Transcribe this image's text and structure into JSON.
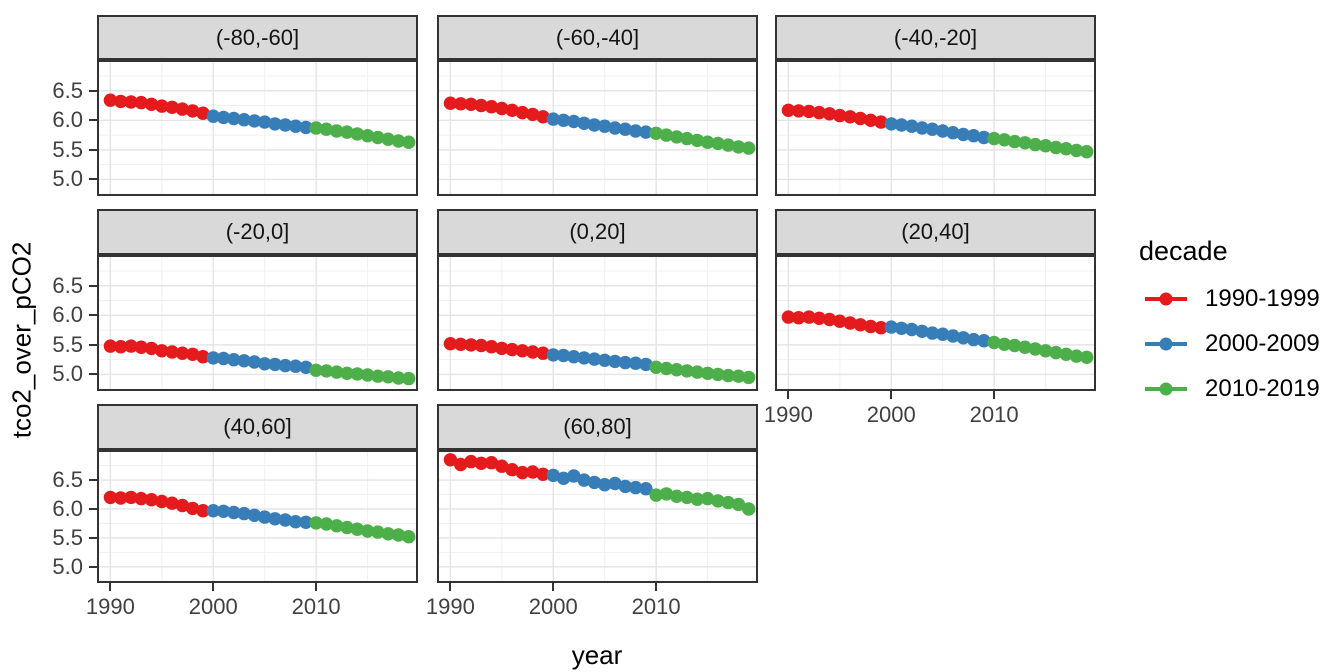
{
  "chart_data": {
    "type": "scatter",
    "title": "",
    "xlabel": "year",
    "ylabel": "tco2_over_pCO2",
    "grid": true,
    "legend": {
      "title": "decade",
      "position": "right",
      "entries": [
        {
          "label": "1990-1999",
          "color": "#E41A1C",
          "start": 1990,
          "end": 1999
        },
        {
          "label": "2000-2009",
          "color": "#377EB8",
          "start": 2000,
          "end": 2009
        },
        {
          "label": "2010-2019",
          "color": "#4DAF4A",
          "start": 2010,
          "end": 2019
        }
      ]
    },
    "axes": {
      "x": {
        "ticks": [
          1990,
          2000,
          2010
        ],
        "tick_labels": [
          "1990",
          "2000",
          "2010"
        ],
        "minor": [
          1995,
          2005,
          2015
        ],
        "lim": [
          1988.7,
          2019.9
        ]
      },
      "y": {
        "ticks": [
          6.5,
          6.0,
          5.5,
          5.0
        ],
        "tick_labels": [
          "6.5",
          "6.0",
          "5.5",
          "5.0"
        ],
        "minor": [
          4.75,
          5.25,
          5.75,
          6.25,
          6.75
        ],
        "lim": [
          4.72,
          7.02
        ]
      }
    },
    "years": [
      1990,
      1991,
      1992,
      1993,
      1994,
      1995,
      1996,
      1997,
      1998,
      1999,
      2000,
      2001,
      2002,
      2003,
      2004,
      2005,
      2006,
      2007,
      2008,
      2009,
      2010,
      2011,
      2012,
      2013,
      2014,
      2015,
      2016,
      2017,
      2018,
      2019
    ],
    "facets": [
      {
        "label": "(-80,-60]",
        "values": [
          6.34,
          6.32,
          6.31,
          6.3,
          6.27,
          6.24,
          6.22,
          6.19,
          6.16,
          6.12,
          6.07,
          6.05,
          6.03,
          6.01,
          5.99,
          5.97,
          5.94,
          5.92,
          5.9,
          5.88,
          5.87,
          5.85,
          5.82,
          5.8,
          5.77,
          5.74,
          5.71,
          5.68,
          5.65,
          5.63
        ]
      },
      {
        "label": "(-60,-40]",
        "values": [
          6.29,
          6.28,
          6.27,
          6.25,
          6.23,
          6.2,
          6.17,
          6.13,
          6.1,
          6.06,
          6.02,
          6.0,
          5.98,
          5.95,
          5.92,
          5.9,
          5.87,
          5.85,
          5.82,
          5.8,
          5.78,
          5.75,
          5.72,
          5.69,
          5.66,
          5.63,
          5.61,
          5.58,
          5.55,
          5.53
        ]
      },
      {
        "label": "(-40,-20]",
        "values": [
          6.17,
          6.16,
          6.15,
          6.13,
          6.11,
          6.08,
          6.06,
          6.03,
          6.0,
          5.97,
          5.94,
          5.92,
          5.9,
          5.87,
          5.85,
          5.82,
          5.79,
          5.76,
          5.74,
          5.71,
          5.69,
          5.67,
          5.64,
          5.62,
          5.59,
          5.57,
          5.54,
          5.52,
          5.49,
          5.47
        ]
      },
      {
        "label": "(-20,0]",
        "values": [
          5.48,
          5.47,
          5.48,
          5.46,
          5.44,
          5.4,
          5.38,
          5.36,
          5.34,
          5.3,
          5.28,
          5.27,
          5.25,
          5.23,
          5.21,
          5.18,
          5.17,
          5.15,
          5.14,
          5.12,
          5.07,
          5.06,
          5.04,
          5.02,
          5.01,
          4.99,
          4.97,
          4.96,
          4.94,
          4.93
        ]
      },
      {
        "label": "(0,20]",
        "values": [
          5.52,
          5.51,
          5.5,
          5.49,
          5.47,
          5.44,
          5.42,
          5.4,
          5.38,
          5.36,
          5.33,
          5.32,
          5.3,
          5.28,
          5.26,
          5.24,
          5.22,
          5.2,
          5.19,
          5.17,
          5.12,
          5.1,
          5.08,
          5.06,
          5.04,
          5.02,
          5.0,
          4.98,
          4.97,
          4.95
        ]
      },
      {
        "label": "(20,40]",
        "values": [
          5.97,
          5.96,
          5.97,
          5.95,
          5.93,
          5.9,
          5.87,
          5.84,
          5.81,
          5.79,
          5.8,
          5.78,
          5.76,
          5.73,
          5.7,
          5.68,
          5.65,
          5.62,
          5.59,
          5.57,
          5.54,
          5.51,
          5.49,
          5.46,
          5.43,
          5.4,
          5.37,
          5.34,
          5.31,
          5.29
        ]
      },
      {
        "label": "(40,60]",
        "values": [
          6.2,
          6.19,
          6.2,
          6.18,
          6.16,
          6.13,
          6.1,
          6.06,
          6.01,
          5.97,
          5.97,
          5.96,
          5.94,
          5.92,
          5.89,
          5.86,
          5.83,
          5.81,
          5.78,
          5.77,
          5.76,
          5.74,
          5.71,
          5.68,
          5.65,
          5.62,
          5.6,
          5.57,
          5.55,
          5.52
        ]
      },
      {
        "label": "(60,80]",
        "values": [
          6.85,
          6.77,
          6.82,
          6.79,
          6.8,
          6.74,
          6.68,
          6.63,
          6.64,
          6.6,
          6.58,
          6.53,
          6.57,
          6.5,
          6.46,
          6.42,
          6.44,
          6.39,
          6.37,
          6.35,
          6.24,
          6.26,
          6.22,
          6.2,
          6.17,
          6.18,
          6.14,
          6.11,
          6.08,
          6.0
        ]
      }
    ],
    "style": {
      "strip_bg": "#D9D9D9",
      "panel_border": "#333333",
      "grid_major": "#E4E4E4",
      "grid_minor": "#F1F1F1",
      "tick_color": "#333333",
      "tick_label_color": "#404040",
      "point_radius": 6.7
    }
  }
}
